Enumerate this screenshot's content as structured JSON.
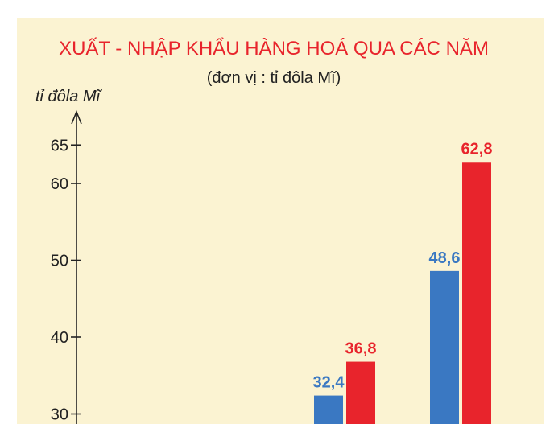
{
  "chart_data": {
    "type": "bar",
    "title": "XUẤT - NHẬP KHẨU HÀNG HOÁ QUA CÁC NĂM",
    "subtitle": "(đơn vị : tỉ đôla Mĩ)",
    "ylabel": "tỉ đôla Mĩ",
    "yticks": [
      "30",
      "40",
      "50",
      "60",
      "65"
    ],
    "ylim": [
      30,
      65
    ],
    "categories": [
      "",
      ""
    ],
    "series": [
      {
        "color": "#3a78c2",
        "values": [
          32.4,
          48.6
        ],
        "labels": [
          "32,4",
          "48,6"
        ]
      },
      {
        "color": "#e8242c",
        "values": [
          36.8,
          62.8
        ],
        "labels": [
          "36,8",
          "62,8"
        ]
      }
    ],
    "grid": false
  }
}
